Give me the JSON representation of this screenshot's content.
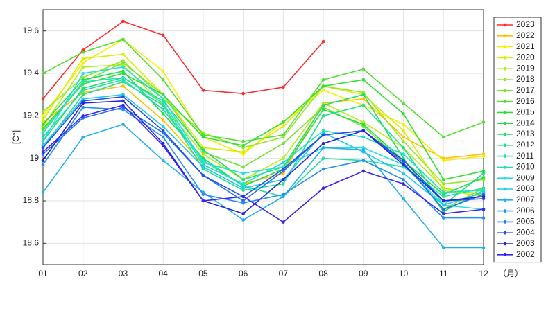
{
  "chart_data": {
    "type": "line",
    "y_label": "[C°]",
    "x_label": "（月）",
    "categories": [
      "01",
      "02",
      "03",
      "04",
      "05",
      "06",
      "07",
      "08",
      "09",
      "10",
      "11",
      "12"
    ],
    "ylim": [
      18.5,
      19.7
    ],
    "yticks": [
      18.6,
      18.8,
      19,
      19.2,
      19.4,
      19.6
    ],
    "grid": true,
    "legend": "outside-right",
    "series": [
      {
        "name": "2023",
        "color": "#ff2a2a",
        "values": [
          19.28,
          19.51,
          19.645,
          19.58,
          19.32,
          19.305,
          19.335,
          19.55,
          null,
          null,
          null,
          null
        ]
      },
      {
        "name": "2022",
        "color": "#ffc000",
        "values": [
          19.17,
          19.31,
          19.34,
          19.18,
          18.97,
          18.88,
          18.93,
          19.26,
          19.28,
          19.1,
          19.0,
          19.02
        ]
      },
      {
        "name": "2021",
        "color": "#f4f000",
        "values": [
          19.2,
          19.45,
          19.56,
          19.41,
          19.1,
          19.02,
          19.17,
          19.32,
          19.25,
          19.16,
          18.99,
          19.01
        ]
      },
      {
        "name": "2020",
        "color": "#d8f000",
        "values": [
          19.18,
          19.47,
          19.49,
          19.3,
          19.05,
          19.03,
          19.15,
          19.34,
          19.3,
          19.13,
          18.85,
          18.82
        ]
      },
      {
        "name": "2019",
        "color": "#b4ee10",
        "values": [
          19.15,
          19.43,
          19.44,
          19.25,
          19.02,
          18.9,
          19.0,
          19.26,
          19.17,
          19.05,
          18.86,
          18.83
        ]
      },
      {
        "name": "2018",
        "color": "#94e828",
        "values": [
          19.22,
          19.38,
          19.46,
          19.28,
          19.12,
          19.05,
          19.1,
          19.34,
          19.31,
          19.08,
          18.88,
          18.9
        ]
      },
      {
        "name": "2017",
        "color": "#74e430",
        "values": [
          19.13,
          19.36,
          19.45,
          19.3,
          19.03,
          18.96,
          19.07,
          19.24,
          19.15,
          18.98,
          18.76,
          18.86
        ]
      },
      {
        "name": "2016",
        "color": "#50e030",
        "values": [
          19.4,
          19.5,
          19.56,
          19.37,
          19.11,
          19.08,
          19.11,
          19.37,
          19.42,
          19.26,
          19.1,
          19.17
        ]
      },
      {
        "name": "2015",
        "color": "#30e030",
        "values": [
          19.14,
          19.35,
          19.4,
          19.3,
          19.1,
          19.06,
          19.17,
          19.34,
          19.37,
          19.21,
          18.9,
          18.94
        ]
      },
      {
        "name": "2014",
        "color": "#20e048",
        "values": [
          19.16,
          19.37,
          19.41,
          19.21,
          19.0,
          18.87,
          18.95,
          19.23,
          19.16,
          18.99,
          18.83,
          18.91
        ]
      },
      {
        "name": "2013",
        "color": "#20e064",
        "values": [
          19.08,
          19.33,
          19.38,
          19.27,
          19.04,
          18.9,
          18.96,
          19.25,
          19.3,
          19.0,
          18.75,
          18.85
        ]
      },
      {
        "name": "2012",
        "color": "#20e084",
        "values": [
          19.05,
          19.3,
          19.36,
          19.25,
          18.95,
          18.85,
          18.88,
          19.2,
          19.25,
          19.05,
          18.78,
          18.93
        ]
      },
      {
        "name": "2011",
        "color": "#20e0a4",
        "values": [
          19.1,
          19.32,
          19.37,
          19.23,
          18.99,
          18.87,
          18.82,
          19.0,
          18.99,
          18.96,
          18.82,
          18.86
        ]
      },
      {
        "name": "2010",
        "color": "#20e0c4",
        "values": [
          19.12,
          19.36,
          19.38,
          19.26,
          18.97,
          18.88,
          18.98,
          19.13,
          19.1,
          19.02,
          18.84,
          18.85
        ]
      },
      {
        "name": "2009",
        "color": "#20e0e4",
        "values": [
          19.08,
          19.4,
          19.43,
          19.28,
          18.98,
          18.93,
          18.96,
          19.05,
          19.05,
          18.97,
          18.78,
          18.76
        ]
      },
      {
        "name": "2008",
        "color": "#20c8f0",
        "values": [
          19.06,
          19.28,
          19.3,
          19.15,
          18.96,
          18.86,
          18.9,
          19.12,
          19.03,
          18.93,
          18.78,
          18.84
        ]
      },
      {
        "name": "2007",
        "color": "#20b0f0",
        "values": [
          18.84,
          19.1,
          19.16,
          18.99,
          18.84,
          18.71,
          18.82,
          19.05,
          19.04,
          18.81,
          18.58,
          18.58
        ]
      },
      {
        "name": "2006",
        "color": "#2090f0",
        "values": [
          18.97,
          19.24,
          19.23,
          19.1,
          18.83,
          18.79,
          18.83,
          18.95,
          18.99,
          18.9,
          18.72,
          18.72
        ]
      },
      {
        "name": "2005",
        "color": "#2070f0",
        "values": [
          19.02,
          19.19,
          19.24,
          19.12,
          18.92,
          18.8,
          18.94,
          19.11,
          19.13,
          18.98,
          18.76,
          18.83
        ]
      },
      {
        "name": "2004",
        "color": "#2050e0",
        "values": [
          19.05,
          19.27,
          19.29,
          19.13,
          18.92,
          18.82,
          18.95,
          19.11,
          19.13,
          18.99,
          18.8,
          18.81
        ]
      },
      {
        "name": "2003",
        "color": "#2424d8",
        "values": [
          18.99,
          19.26,
          19.27,
          19.07,
          18.8,
          18.74,
          18.9,
          19.07,
          19.13,
          18.97,
          18.8,
          18.82
        ]
      },
      {
        "name": "2002",
        "color": "#3a24f0",
        "values": [
          19.03,
          19.2,
          19.25,
          19.06,
          18.8,
          18.82,
          18.7,
          18.86,
          18.94,
          18.88,
          18.74,
          18.76
        ]
      }
    ]
  }
}
